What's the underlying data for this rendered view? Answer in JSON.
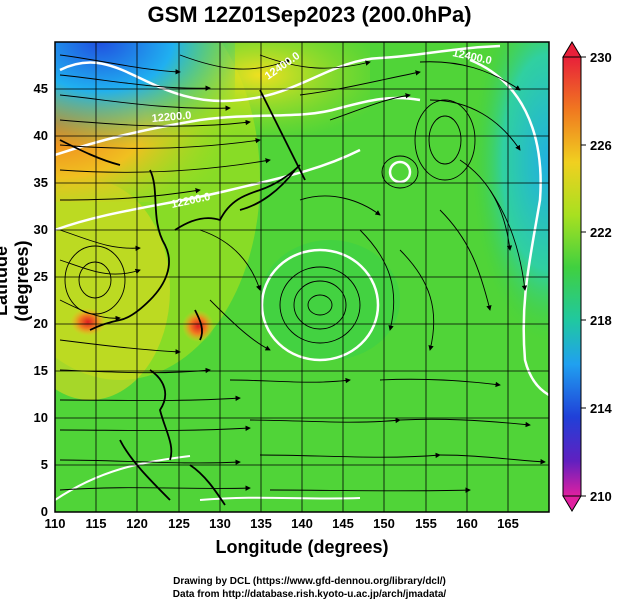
{
  "title": "GSM 12Z01Sep2023 (200.0hPa)",
  "xlabel": "Longitude (degrees)",
  "ylabel": "Latitude  (degrees)",
  "x_ticks": [
    "110",
    "115",
    "120",
    "125",
    "130",
    "135",
    "140",
    "145",
    "150",
    "155",
    "160",
    "165"
  ],
  "y_ticks": [
    "0",
    "5",
    "10",
    "15",
    "20",
    "25",
    "30",
    "35",
    "40",
    "45"
  ],
  "colorbar": {
    "ticks": [
      "230",
      "226",
      "222",
      "218",
      "214",
      "210"
    ],
    "colors": [
      "#e8203a",
      "#f07820",
      "#f0d020",
      "#a8e020",
      "#40d040",
      "#20c8a0",
      "#20a0f0",
      "#2040d8",
      "#6020c0",
      "#e020a0"
    ]
  },
  "contour_labels": [
    "12400.0",
    "12200.0",
    "12400.0",
    "12200.0"
  ],
  "credits": {
    "line1": "Drawing by DCL (https://www.gfd-dennou.org/library/dcl/)",
    "line2": "Data from http://database.rish.kyoto-u.ac.jp/arch/jmadata/"
  },
  "chart_data": {
    "type": "heatmap",
    "title": "GSM 12Z01Sep2023 (200.0hPa)",
    "xlabel": "Longitude (degrees)",
    "ylabel": "Latitude  (degrees)",
    "xlim": [
      110,
      170
    ],
    "ylim": [
      0,
      50
    ],
    "colorbar_range": [
      210,
      230
    ],
    "colorbar_ticks": [
      210,
      214,
      218,
      222,
      226,
      230
    ],
    "contours": [
      12200.0,
      12400.0
    ],
    "grid": true
  }
}
